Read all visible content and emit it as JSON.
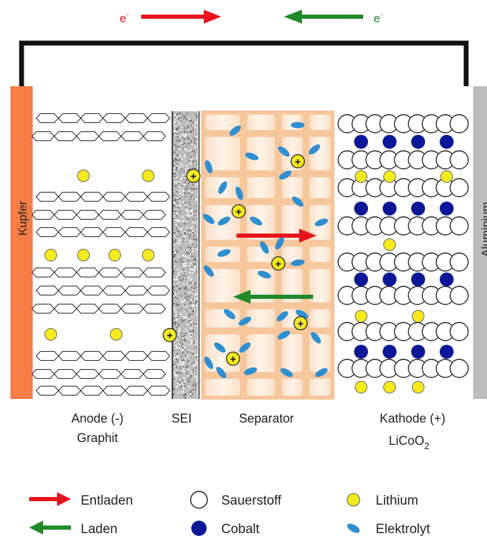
{
  "electrons": {
    "left_label": "e",
    "right_label": "e",
    "charge_sign": "-"
  },
  "electrodes": {
    "left_label": "Kupfer",
    "right_label": "Aluminium"
  },
  "regions": {
    "anode_line1": "Anode (-)",
    "anode_line2": "Graphit",
    "sei": "SEI",
    "separator": "Separator",
    "kathode_line1": "Kathode (+)",
    "kathode_formula_base": "LiCoO",
    "kathode_formula_sub": "2"
  },
  "ion_symbol": "+",
  "legend": {
    "entladen": "Entladen",
    "laden": "Laden",
    "sauerstoff": "Sauerstoff",
    "cobalt": "Cobalt",
    "lithium": "Lithium",
    "elektrolyt": "Elektrolyt"
  },
  "colors": {
    "copper": "#f77d46",
    "aluminium": "#bdbdbd",
    "discharge_arrow": "#e8141b",
    "charge_arrow": "#1f8a2a",
    "lithium": "#f5ea1d",
    "cobalt": "#0a1796",
    "electrolyte": "#2f8fd0",
    "separator": "#f8c8a0",
    "wire": "#111111"
  }
}
